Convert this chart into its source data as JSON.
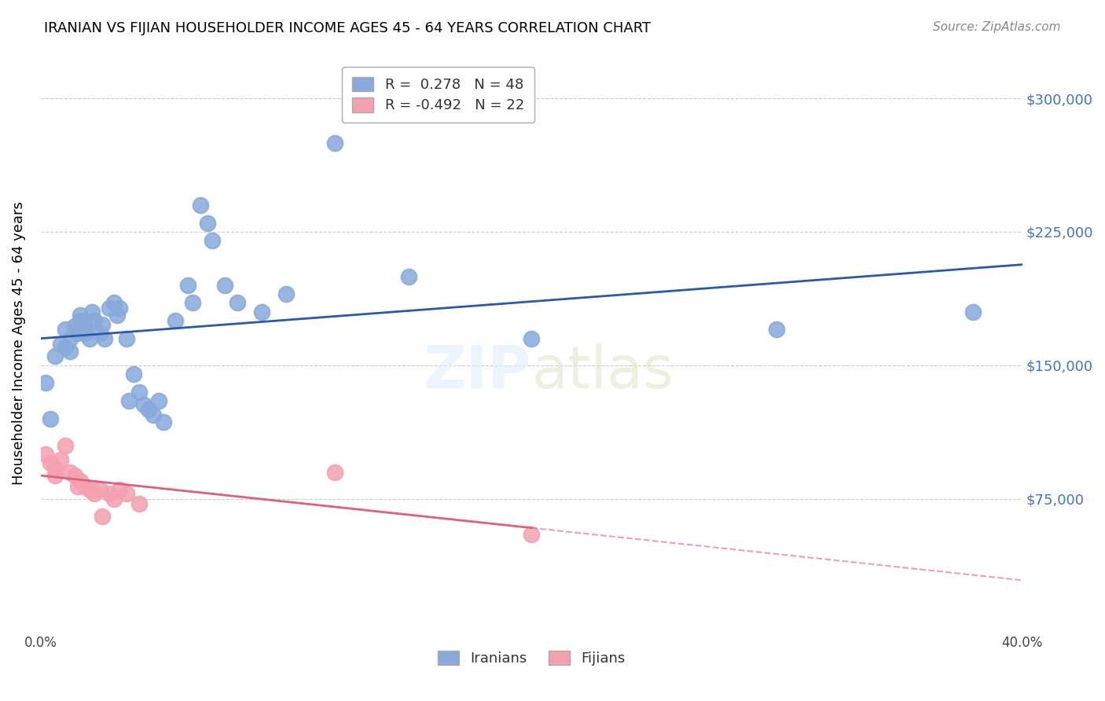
{
  "title": "IRANIAN VS FIJIAN HOUSEHOLDER INCOME AGES 45 - 64 YEARS CORRELATION CHART",
  "source": "Source: ZipAtlas.com",
  "ylabel": "Householder Income Ages 45 - 64 years",
  "xlim": [
    0.0,
    0.4
  ],
  "ylim": [
    0,
    325000
  ],
  "yticks": [
    0,
    75000,
    150000,
    225000,
    300000
  ],
  "ytick_labels": [
    "",
    "$75,000",
    "$150,000",
    "$225,000",
    "$300,000"
  ],
  "iranian_R": 0.278,
  "iranian_N": 48,
  "fijian_R": -0.492,
  "fijian_N": 22,
  "iranian_color": "#87AADB",
  "iranian_line_color": "#2B5BA8",
  "fijian_color": "#F4A0B0",
  "fijian_line_color": "#E0607A",
  "background_color": "#FFFFFF",
  "grid_color": "#CCCCCC",
  "title_color": "#000000",
  "axis_label_color": "#000000",
  "ytick_color": "#4472C4",
  "source_color": "#888888",
  "iranians_x": [
    0.002,
    0.004,
    0.006,
    0.008,
    0.01,
    0.01,
    0.012,
    0.012,
    0.014,
    0.015,
    0.016,
    0.016,
    0.018,
    0.018,
    0.02,
    0.021,
    0.022,
    0.024,
    0.025,
    0.026,
    0.028,
    0.03,
    0.031,
    0.032,
    0.035,
    0.036,
    0.038,
    0.04,
    0.042,
    0.044,
    0.046,
    0.048,
    0.05,
    0.055,
    0.06,
    0.062,
    0.065,
    0.068,
    0.07,
    0.075,
    0.08,
    0.09,
    0.1,
    0.12,
    0.15,
    0.2,
    0.3,
    0.38
  ],
  "iranians_y": [
    140000,
    120000,
    155000,
    162000,
    160000,
    170000,
    165000,
    158000,
    172000,
    168000,
    175000,
    178000,
    168000,
    172000,
    165000,
    180000,
    175000,
    168000,
    173000,
    165000,
    182000,
    185000,
    178000,
    182000,
    165000,
    130000,
    145000,
    135000,
    128000,
    125000,
    122000,
    130000,
    118000,
    175000,
    195000,
    185000,
    240000,
    230000,
    220000,
    195000,
    185000,
    180000,
    190000,
    275000,
    200000,
    165000,
    170000,
    180000
  ],
  "fijians_x": [
    0.002,
    0.004,
    0.006,
    0.006,
    0.008,
    0.01,
    0.012,
    0.014,
    0.015,
    0.016,
    0.018,
    0.02,
    0.022,
    0.024,
    0.025,
    0.028,
    0.03,
    0.032,
    0.035,
    0.04,
    0.12,
    0.2
  ],
  "fijians_y": [
    100000,
    95000,
    92000,
    88000,
    97000,
    105000,
    90000,
    88000,
    82000,
    85000,
    82000,
    80000,
    78000,
    80000,
    65000,
    78000,
    75000,
    80000,
    78000,
    72000,
    90000,
    55000
  ]
}
